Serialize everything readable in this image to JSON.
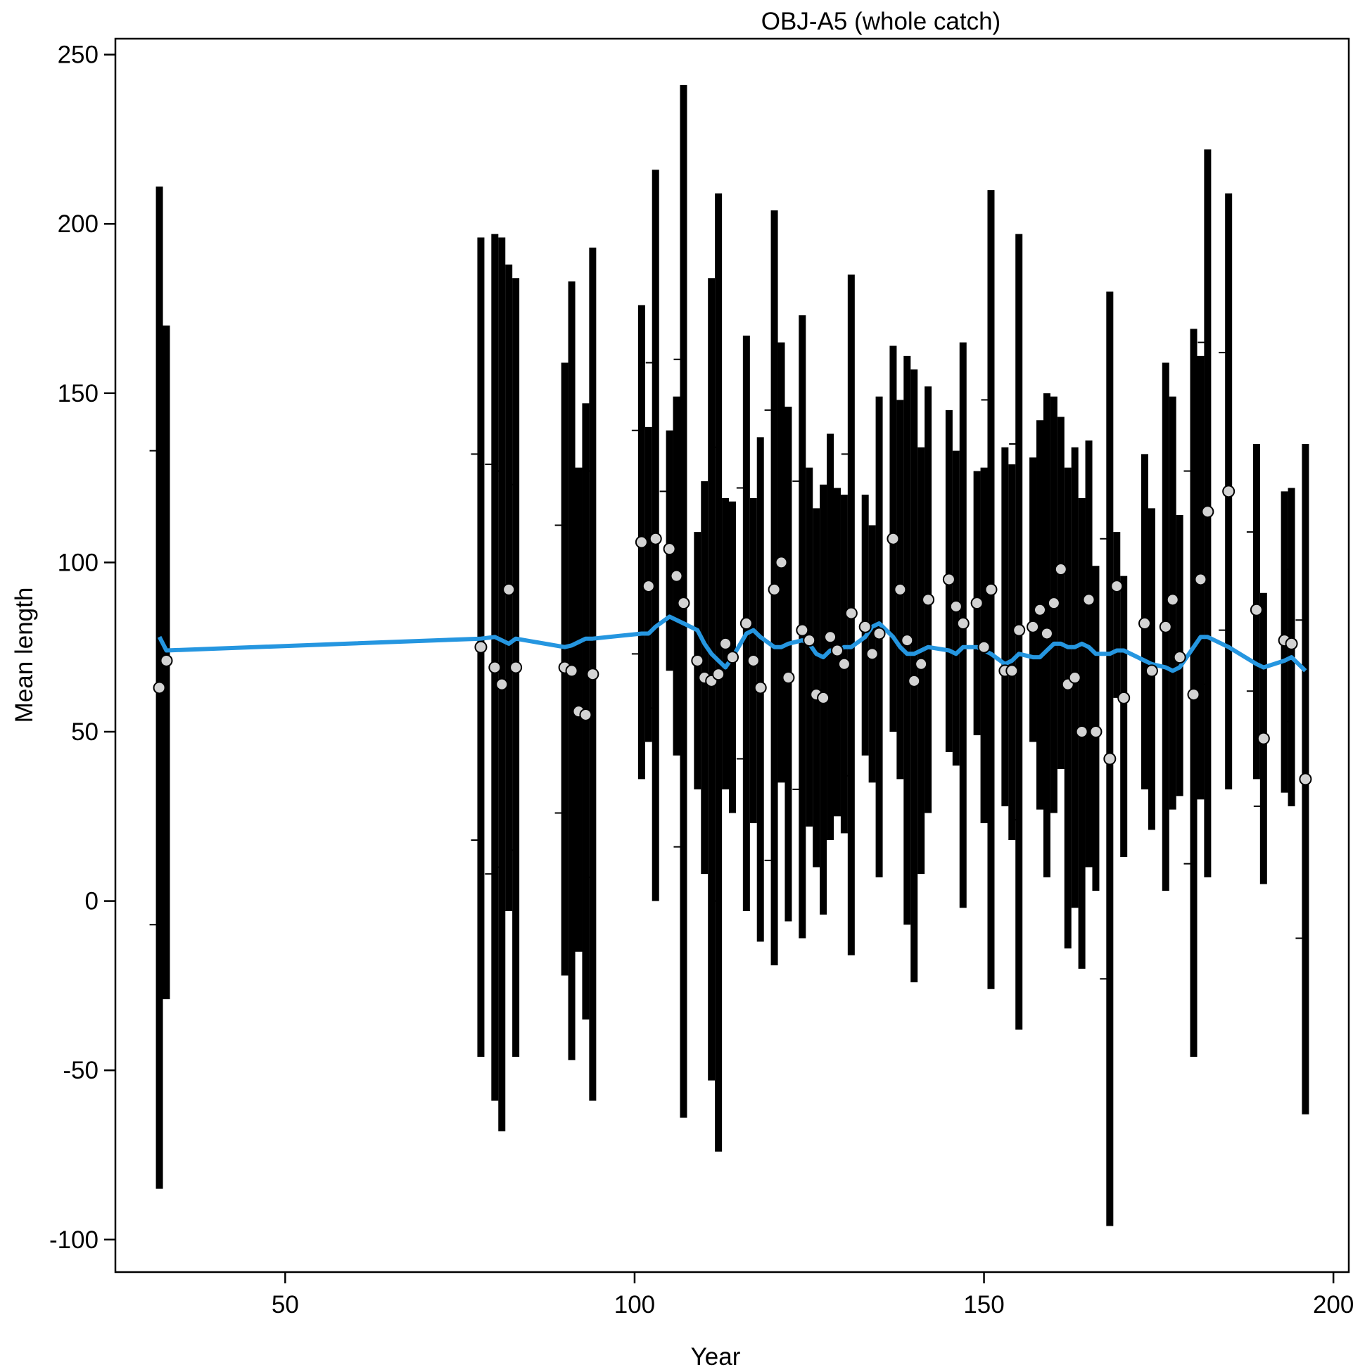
{
  "chart_data": {
    "type": "errorbar",
    "title": "OBJ-A5 (whole catch)",
    "xlabel": "Year",
    "ylabel": "Mean length",
    "xlim": [
      25.7,
      202.2
    ],
    "ylim": [
      -109.6,
      254.7
    ],
    "xticks": [
      50,
      100,
      150,
      200
    ],
    "yticks": [
      -100,
      -50,
      0,
      50,
      100,
      150,
      200,
      250
    ],
    "bar_color": "#000000",
    "point_color": "#d3d3d3",
    "line_color": "#2596e0",
    "x": [
      32,
      33,
      78,
      80,
      81,
      82,
      83,
      90,
      91,
      92,
      93,
      94,
      101,
      102,
      103,
      105,
      106,
      107,
      109,
      110,
      111,
      112,
      113,
      114,
      116,
      117,
      118,
      120,
      121,
      122,
      124,
      125,
      126,
      127,
      128,
      129,
      130,
      131,
      133,
      134,
      135,
      137,
      138,
      139,
      140,
      141,
      142,
      145,
      146,
      147,
      149,
      150,
      151,
      153,
      154,
      155,
      157,
      158,
      159,
      160,
      161,
      162,
      163,
      164,
      165,
      166,
      168,
      169,
      170,
      173,
      174,
      176,
      177,
      178,
      180,
      181,
      182,
      185,
      189,
      190,
      193,
      194,
      196
    ],
    "values": [
      63,
      71,
      75,
      69,
      64,
      92,
      69,
      69,
      68,
      56,
      55,
      67,
      106,
      93,
      107,
      104,
      96,
      88,
      71,
      66,
      65,
      67,
      76,
      72,
      82,
      71,
      63,
      92,
      100,
      66,
      80,
      77,
      61,
      60,
      78,
      74,
      70,
      85,
      81,
      73,
      79,
      107,
      92,
      77,
      65,
      70,
      89,
      95,
      87,
      82,
      88,
      75,
      92,
      68,
      68,
      80,
      81,
      86,
      79,
      88,
      98,
      64,
      66,
      50,
      89,
      50,
      42,
      93,
      60,
      82,
      68,
      81,
      89,
      72,
      61,
      95,
      115,
      121,
      86,
      48,
      77,
      76,
      36
    ],
    "lower": [
      -85,
      -29,
      -46,
      -59,
      -68,
      -3,
      -46,
      -22,
      -47,
      -15,
      -35,
      -59,
      36,
      47,
      0,
      68,
      43,
      -64,
      33,
      8,
      -53,
      -74,
      33,
      26,
      -3,
      23,
      -12,
      -19,
      35,
      -6,
      -11,
      22,
      10,
      -4,
      18,
      25,
      20,
      -16,
      43,
      35,
      7,
      50,
      36,
      -7,
      -24,
      8,
      26,
      44,
      40,
      -2,
      49,
      23,
      -26,
      28,
      18,
      -38,
      47,
      27,
      7,
      26,
      39,
      -14,
      -2,
      -20,
      10,
      3,
      -96,
      60,
      13,
      33,
      21,
      3,
      27,
      31,
      -46,
      30,
      7,
      33,
      36,
      5,
      32,
      28,
      -63
    ],
    "upper": [
      211,
      170,
      196,
      197,
      196,
      188,
      184,
      159,
      183,
      128,
      147,
      193,
      176,
      140,
      216,
      139,
      149,
      241,
      109,
      124,
      184,
      209,
      119,
      118,
      167,
      119,
      137,
      204,
      165,
      146,
      173,
      128,
      116,
      123,
      138,
      122,
      120,
      185,
      120,
      111,
      149,
      164,
      148,
      161,
      157,
      134,
      152,
      145,
      133,
      165,
      127,
      128,
      210,
      134,
      129,
      197,
      131,
      142,
      150,
      149,
      143,
      128,
      134,
      119,
      136,
      99,
      180,
      109,
      96,
      132,
      116,
      159,
      149,
      114,
      169,
      161,
      222,
      209,
      135,
      91,
      121,
      122,
      135
    ],
    "inner_upper": [
      133,
      118,
      132,
      129,
      127,
      null,
      123,
      111,
      null,
      null,
      null,
      127,
      139,
      null,
      159,
      121,
      null,
      160,
      null,
      null,
      null,
      134,
      null,
      null,
      122,
      null,
      null,
      145,
      null,
      null,
      124,
      null,
      null,
      null,
      null,
      null,
      null,
      132,
      null,
      null,
      null,
      null,
      null,
      null,
      null,
      null,
      null,
      null,
      null,
      null,
      null,
      null,
      148,
      null,
      null,
      135,
      null,
      null,
      null,
      null,
      null,
      null,
      null,
      null,
      null,
      null,
      107,
      null,
      null,
      null,
      null,
      null,
      null,
      null,
      127,
      null,
      165,
      162,
      109,
      69,
      null,
      98,
      83
    ],
    "inner_lower": [
      -7,
      24,
      18,
      8,
      10,
      null,
      15,
      26,
      null,
      null,
      null,
      7,
      73,
      null,
      57,
      null,
      null,
      16,
      null,
      null,
      null,
      0,
      null,
      null,
      42,
      null,
      null,
      12,
      null,
      null,
      33,
      null,
      null,
      null,
      null,
      null,
      null,
      37,
      null,
      null,
      null,
      null,
      null,
      null,
      null,
      null,
      null,
      null,
      null,
      null,
      null,
      null,
      36,
      null,
      null,
      24,
      null,
      null,
      null,
      null,
      null,
      null,
      null,
      null,
      null,
      null,
      -23,
      null,
      null,
      null,
      null,
      null,
      null,
      null,
      11,
      null,
      64,
      80,
      62,
      28,
      null,
      53,
      -11
    ],
    "expected": [
      78,
      74,
      77.5,
      78,
      77,
      76,
      77.5,
      75,
      75.5,
      76.5,
      77.5,
      77.5,
      79,
      79,
      81,
      84,
      83,
      82,
      80,
      76,
      73,
      71,
      69,
      72,
      79,
      80,
      78,
      75,
      75,
      76,
      77,
      76,
      73,
      72,
      74,
      74,
      75,
      75,
      78,
      81,
      82,
      78,
      75,
      73,
      73,
      74,
      75,
      74,
      73,
      75,
      75,
      74,
      73,
      70,
      71,
      73,
      72,
      72,
      74,
      76,
      76,
      75,
      75,
      76,
      75,
      73,
      73,
      74,
      74,
      71,
      70,
      69,
      68,
      69,
      75,
      78,
      78,
      75,
      70,
      69,
      71,
      72,
      68
    ]
  }
}
